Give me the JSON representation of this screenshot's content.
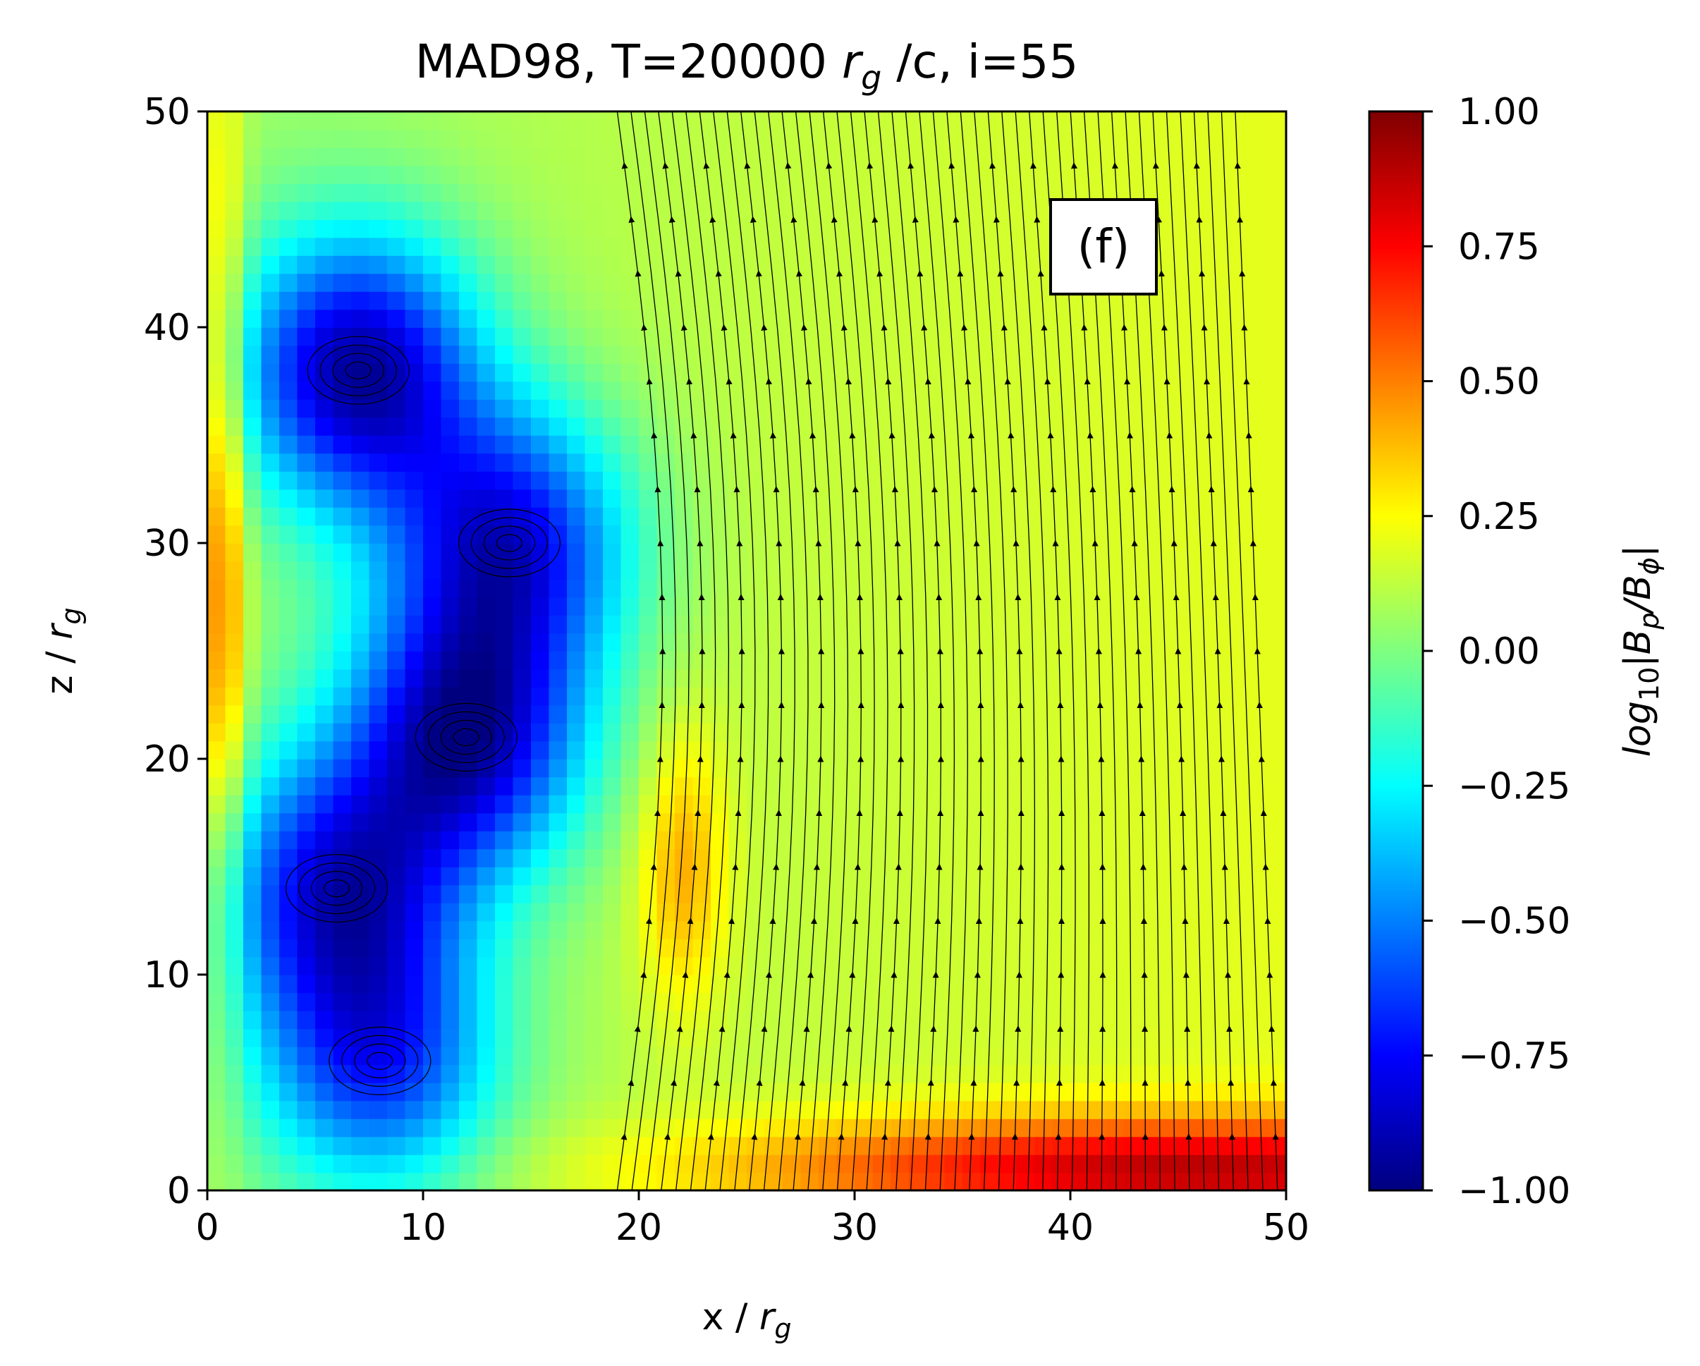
{
  "chart_data": {
    "type": "heatmap",
    "title": "MAD98, T=20000 r_g /c, i=55",
    "title_parts": {
      "pre": "MAD98, T=20000 ",
      "var": "r",
      "sub": "g",
      "post": " /c, i=55"
    },
    "panel_label": "(f)",
    "xlabel": {
      "pre": "x / ",
      "var": "r",
      "sub": "g"
    },
    "ylabel": {
      "pre": "z / ",
      "var": "r",
      "sub": "g"
    },
    "xlim": [
      0,
      50
    ],
    "ylim": [
      0,
      50
    ],
    "xticks": [
      "0",
      "10",
      "20",
      "30",
      "40",
      "50"
    ],
    "yticks": [
      "0",
      "10",
      "20",
      "30",
      "40",
      "50"
    ],
    "colorbar": {
      "label": "log10|Bp/Bφ|",
      "label_parts": {
        "a": "log",
        "a_sub": "10",
        "b": "|B",
        "b_sub": "p",
        "c": "/B",
        "c_sub": "ϕ",
        "d": "|"
      },
      "cmap": "jet",
      "range": [
        -1.0,
        1.0
      ],
      "ticks": [
        "1.00",
        "0.75",
        "0.50",
        "0.25",
        "0.00",
        "−0.25",
        "−0.50",
        "−0.75",
        "−1.00"
      ]
    },
    "colormap_stops": [
      "#00007f",
      "#0000ff",
      "#007fff",
      "#00ffff",
      "#7fff7f",
      "#ffff00",
      "#ff7f00",
      "#ff0000",
      "#7f0000"
    ],
    "field_features": {
      "background_value": 0.1,
      "low_regions": [
        {
          "x": 7,
          "z": 38,
          "value": -0.9
        },
        {
          "x": 12,
          "z": 21,
          "value": -0.85
        },
        {
          "x": 6,
          "z": 14,
          "value": -0.7
        },
        {
          "x": 8,
          "z": 6,
          "value": -0.6
        },
        {
          "x": 14,
          "z": 30,
          "value": -0.75
        }
      ],
      "high_regions": [
        {
          "x": 0.7,
          "z": 30,
          "value": 0.55
        },
        {
          "x": 22,
          "z": 15,
          "value": 0.4
        },
        {
          "x": 45,
          "z": 1,
          "value": 0.8
        }
      ]
    }
  }
}
